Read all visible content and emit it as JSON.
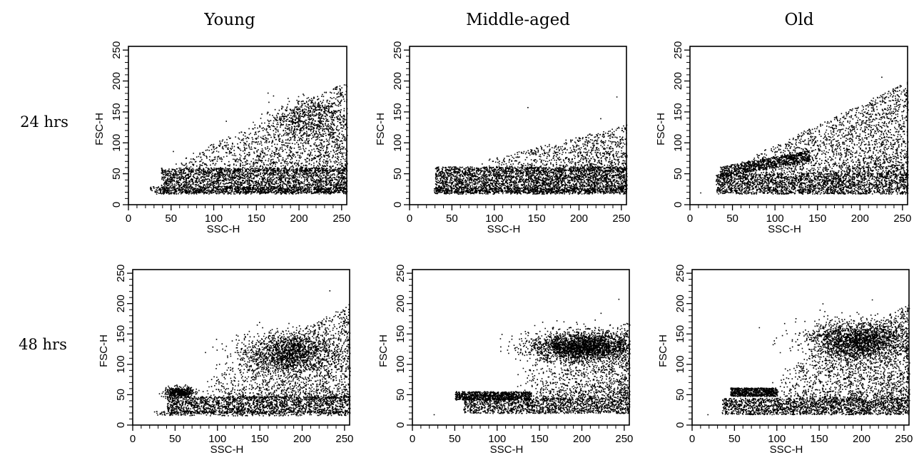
{
  "figure": {
    "column_titles": [
      "Young",
      "Middle-aged",
      "Old"
    ],
    "row_labels": [
      "24 hrs",
      "48 hrs"
    ]
  },
  "colors": {
    "points": "#000000",
    "axes": "#000000",
    "background": "#ffffff"
  },
  "chart_data": [
    {
      "type": "scatter",
      "title": "Young",
      "row": "24 hrs",
      "xlabel": "SSC-H",
      "ylabel": "FSC-H",
      "xlim": [
        0,
        256
      ],
      "ylim": [
        0,
        256
      ],
      "xticks": [
        0,
        50,
        100,
        150,
        200,
        250
      ],
      "yticks": [
        0,
        50,
        100,
        150,
        200,
        250
      ],
      "grid": false,
      "clusters": [
        {
          "kind": "rect",
          "x": [
            38,
            256
          ],
          "y": [
            20,
            60
          ],
          "n": 2600
        },
        {
          "kind": "rect",
          "x": [
            25,
            256
          ],
          "y": [
            18,
            30
          ],
          "n": 700
        },
        {
          "kind": "wedge",
          "x": [
            45,
            256
          ],
          "y_low": 55,
          "y_high": [
            65,
            200
          ],
          "n": 1700
        },
        {
          "kind": "blob",
          "cx": 210,
          "cy": 140,
          "rx": 45,
          "ry": 30,
          "n": 500
        }
      ],
      "outliers": [
        [
          52,
          87
        ]
      ]
    },
    {
      "type": "scatter",
      "title": "Middle-aged",
      "row": "24 hrs",
      "xlabel": "SSC-H",
      "ylabel": "FSC-H",
      "xlim": [
        0,
        256
      ],
      "ylim": [
        0,
        256
      ],
      "xticks": [
        0,
        50,
        100,
        150,
        200,
        250
      ],
      "yticks": [
        0,
        50,
        100,
        150,
        200,
        250
      ],
      "grid": false,
      "clusters": [
        {
          "kind": "rect",
          "x": [
            30,
            256
          ],
          "y": [
            20,
            62
          ],
          "n": 3300
        },
        {
          "kind": "rect",
          "x": [
            28,
            256
          ],
          "y": [
            18,
            28
          ],
          "n": 600
        },
        {
          "kind": "wedge",
          "x": [
            80,
            256
          ],
          "y_low": 55,
          "y_high": [
            70,
            130
          ],
          "n": 900
        }
      ],
      "outliers": [
        [
          139,
          158
        ],
        [
          244,
          175
        ],
        [
          225,
          140
        ]
      ]
    },
    {
      "type": "scatter",
      "title": "Old",
      "row": "24 hrs",
      "xlabel": "SSC-H",
      "ylabel": "FSC-H",
      "xlim": [
        0,
        256
      ],
      "ylim": [
        0,
        256
      ],
      "xticks": [
        0,
        50,
        100,
        150,
        200,
        250
      ],
      "yticks": [
        0,
        50,
        100,
        150,
        200,
        250
      ],
      "grid": false,
      "clusters": [
        {
          "kind": "rect",
          "x": [
            30,
            256
          ],
          "y": [
            18,
            50
          ],
          "n": 2400
        },
        {
          "kind": "band",
          "x": [
            35,
            140
          ],
          "y": [
            45,
            62
          ],
          "slope": 0.25,
          "n": 900
        },
        {
          "kind": "wedge",
          "x": [
            50,
            256
          ],
          "y_low": 50,
          "y_high": [
            65,
            200
          ],
          "n": 2000
        }
      ],
      "outliers": [
        [
          12,
          20
        ],
        [
          225,
          207
        ]
      ]
    },
    {
      "type": "scatter",
      "title": "Young",
      "row": "48 hrs",
      "xlabel": "SSC-H",
      "ylabel": "FSC-H",
      "xlim": [
        0,
        256
      ],
      "ylim": [
        0,
        256
      ],
      "xticks": [
        0,
        50,
        100,
        150,
        200,
        250
      ],
      "yticks": [
        0,
        50,
        100,
        150,
        200,
        250
      ],
      "grid": false,
      "clusters": [
        {
          "kind": "blob",
          "cx": 55,
          "cy": 55,
          "rx": 15,
          "ry": 8,
          "n": 450
        },
        {
          "kind": "rect",
          "x": [
            40,
            256
          ],
          "y": [
            20,
            48
          ],
          "n": 1900
        },
        {
          "kind": "blob",
          "cx": 185,
          "cy": 120,
          "rx": 55,
          "ry": 30,
          "n": 1500
        },
        {
          "kind": "wedge",
          "x": [
            80,
            256
          ],
          "y_low": 45,
          "y_high": [
            70,
            200
          ],
          "n": 1500
        },
        {
          "kind": "rect",
          "x": [
            25,
            256
          ],
          "y": [
            16,
            24
          ],
          "n": 300
        }
      ],
      "outliers": [
        [
          232,
          222
        ]
      ]
    },
    {
      "type": "scatter",
      "title": "Middle-aged",
      "row": "48 hrs",
      "xlabel": "SSC-H",
      "ylabel": "FSC-H",
      "xlim": [
        0,
        256
      ],
      "ylim": [
        0,
        256
      ],
      "xticks": [
        0,
        50,
        100,
        150,
        200,
        250
      ],
      "yticks": [
        0,
        50,
        100,
        150,
        200,
        250
      ],
      "grid": false,
      "clusters": [
        {
          "kind": "band",
          "x": [
            50,
            140
          ],
          "y": [
            42,
            56
          ],
          "slope": 0,
          "n": 900
        },
        {
          "kind": "rect",
          "x": [
            60,
            256
          ],
          "y": [
            20,
            45
          ],
          "n": 1500
        },
        {
          "kind": "blob",
          "cx": 200,
          "cy": 130,
          "rx": 55,
          "ry": 22,
          "n": 2400
        },
        {
          "kind": "wedge",
          "x": [
            120,
            256
          ],
          "y_low": 45,
          "y_high": [
            100,
            170
          ],
          "n": 1200
        }
      ],
      "outliers": [
        [
          25,
          18
        ],
        [
          243,
          208
        ],
        [
          222,
          185
        ]
      ]
    },
    {
      "type": "scatter",
      "title": "Old",
      "row": "48 hrs",
      "xlabel": "SSC-H",
      "ylabel": "FSC-H",
      "xlim": [
        0,
        256
      ],
      "ylim": [
        0,
        256
      ],
      "xticks": [
        0,
        50,
        100,
        150,
        200,
        250
      ],
      "yticks": [
        0,
        50,
        100,
        150,
        200,
        250
      ],
      "grid": false,
      "clusters": [
        {
          "kind": "band",
          "x": [
            45,
            100
          ],
          "y": [
            48,
            62
          ],
          "slope": 0,
          "n": 700
        },
        {
          "kind": "rect",
          "x": [
            35,
            256
          ],
          "y": [
            18,
            45
          ],
          "n": 2000
        },
        {
          "kind": "blob",
          "cx": 195,
          "cy": 140,
          "rx": 55,
          "ry": 30,
          "n": 2000
        },
        {
          "kind": "wedge",
          "x": [
            90,
            256
          ],
          "y_low": 45,
          "y_high": [
            80,
            200
          ],
          "n": 1600
        }
      ],
      "outliers": [
        [
          18,
          18
        ],
        [
          212,
          207
        ]
      ]
    }
  ]
}
